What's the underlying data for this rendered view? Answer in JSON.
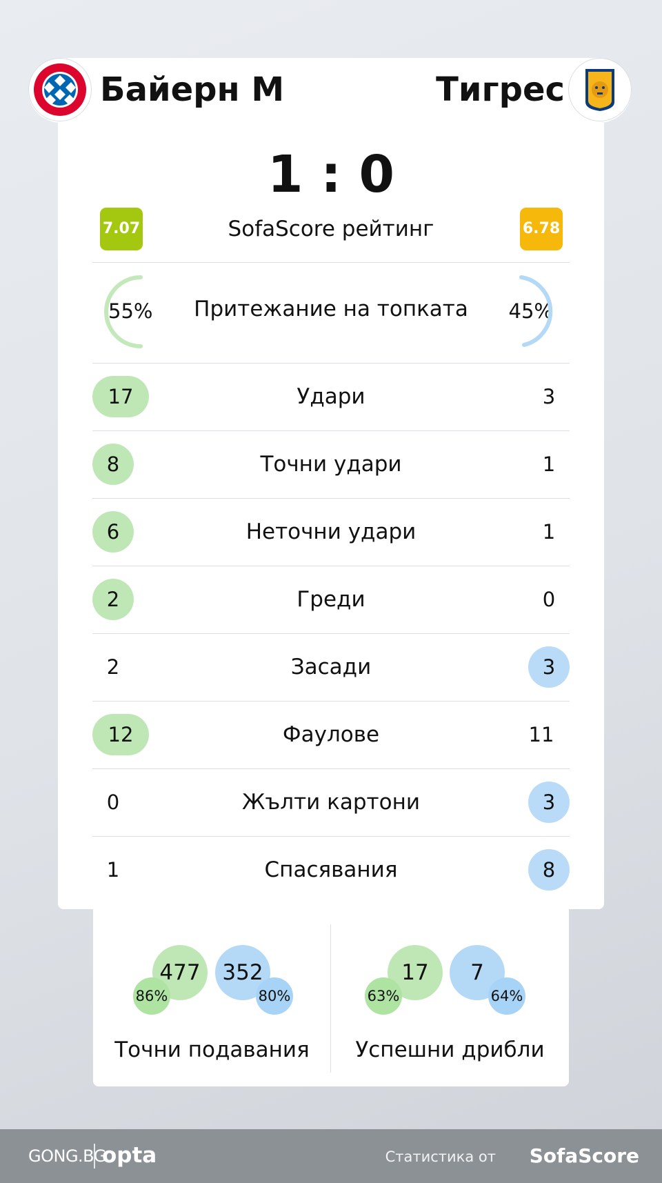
{
  "match": {
    "home_team": "Байерн М",
    "away_team": "Тигрес",
    "score": "1 : 0",
    "home_logo": {
      "icon": "fc-bayern-munchen-crest",
      "text": "FC BAYERN MÜNCHEN"
    },
    "away_logo": {
      "icon": "tigres-uanl-crest",
      "text": "TIGRES UANL"
    }
  },
  "rating": {
    "label": "SofaScore рейтинг",
    "home": "7.07",
    "away": "6.78",
    "home_color": "#a4c80f",
    "away_color": "#f6b80a"
  },
  "possession": {
    "label": "Притежание на топката",
    "home": "55%",
    "away": "45%",
    "home_fraction": 0.55,
    "away_fraction": 0.45
  },
  "stats": [
    {
      "label": "Удари",
      "home": "17",
      "away": "3",
      "winner": "home"
    },
    {
      "label": "Точни удари",
      "home": "8",
      "away": "1",
      "winner": "home"
    },
    {
      "label": "Неточни удари",
      "home": "6",
      "away": "1",
      "winner": "home"
    },
    {
      "label": "Греди",
      "home": "2",
      "away": "0",
      "winner": "home"
    },
    {
      "label": "Засади",
      "home": "2",
      "away": "3",
      "winner": "away"
    },
    {
      "label": "Фаулове",
      "home": "12",
      "away": "11",
      "winner": "home"
    },
    {
      "label": "Жълти картони",
      "home": "0",
      "away": "3",
      "winner": "away"
    },
    {
      "label": "Спасявания",
      "home": "1",
      "away": "8",
      "winner": "away"
    }
  ],
  "passes": {
    "label": "Точни подавания",
    "home": "477",
    "home_pct": "86%",
    "away": "352",
    "away_pct": "80%"
  },
  "dribbles": {
    "label": "Успешни дрибли",
    "home": "17",
    "home_pct": "63%",
    "away": "7",
    "away_pct": "64%"
  },
  "colors": {
    "home": "#bfe7b5",
    "away": "#b9dbf7"
  },
  "footer": {
    "site": "GONG.BG",
    "partner": "opta",
    "stats_by": "Статистика от",
    "brand": "SofaScore"
  }
}
